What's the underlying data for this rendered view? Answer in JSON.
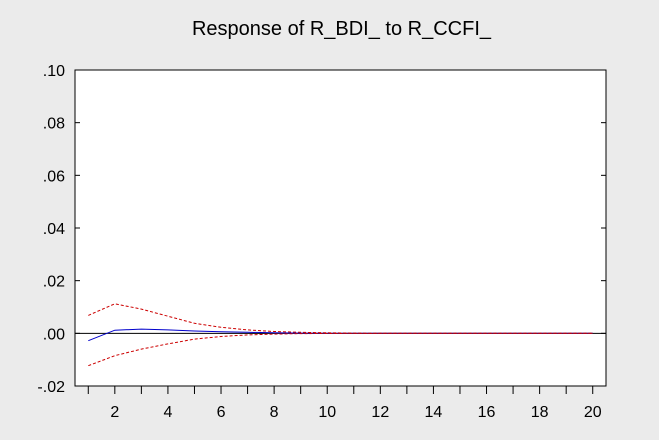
{
  "chart_data": {
    "type": "line",
    "title": "Response of R_BDI_ to R_CCFI_",
    "xlabel": "",
    "ylabel": "",
    "x": [
      1,
      2,
      3,
      4,
      5,
      6,
      7,
      8,
      9,
      10,
      11,
      12,
      13,
      14,
      15,
      16,
      17,
      18,
      19,
      20
    ],
    "xlim": [
      0.5,
      20.5
    ],
    "ylim": [
      -0.02,
      0.1
    ],
    "yticks": [
      -0.02,
      0.0,
      0.02,
      0.04,
      0.06,
      0.08,
      0.1
    ],
    "ytick_labels": [
      "-.02",
      ".00",
      ".02",
      ".04",
      ".06",
      ".08",
      ".10"
    ],
    "xticks": [
      2,
      4,
      6,
      8,
      10,
      12,
      14,
      16,
      18,
      20
    ],
    "xtick_labels": [
      "2",
      "4",
      "6",
      "8",
      "10",
      "12",
      "14",
      "16",
      "18",
      "20"
    ],
    "grid": false,
    "zero_line": true,
    "series": [
      {
        "role": "response",
        "color": "#0000cc",
        "style": "solid",
        "values": [
          -0.0028,
          0.0012,
          0.0016,
          0.0013,
          0.0009,
          0.0006,
          0.0004,
          0.0002,
          0.0001,
          5e-05,
          2e-05,
          0.0,
          0.0,
          0.0,
          0.0,
          0.0,
          0.0,
          0.0,
          0.0,
          0.0
        ]
      },
      {
        "role": "upper-band",
        "color": "#cc0000",
        "style": "dashed",
        "values": [
          0.0068,
          0.0112,
          0.0092,
          0.0065,
          0.0038,
          0.0023,
          0.0013,
          0.0007,
          0.0004,
          0.0002,
          0.0001,
          3e-05,
          0.0,
          0.0,
          0.0,
          0.0,
          0.0,
          0.0,
          0.0,
          0.0
        ]
      },
      {
        "role": "lower-band",
        "color": "#cc0000",
        "style": "dashed",
        "values": [
          -0.0123,
          -0.0085,
          -0.006,
          -0.004,
          -0.0022,
          -0.0012,
          -0.0006,
          -0.0003,
          -0.0001,
          -5e-05,
          -2e-05,
          0.0,
          0.0,
          0.0,
          0.0,
          0.0,
          0.0,
          0.0,
          0.0,
          0.0
        ]
      }
    ]
  }
}
